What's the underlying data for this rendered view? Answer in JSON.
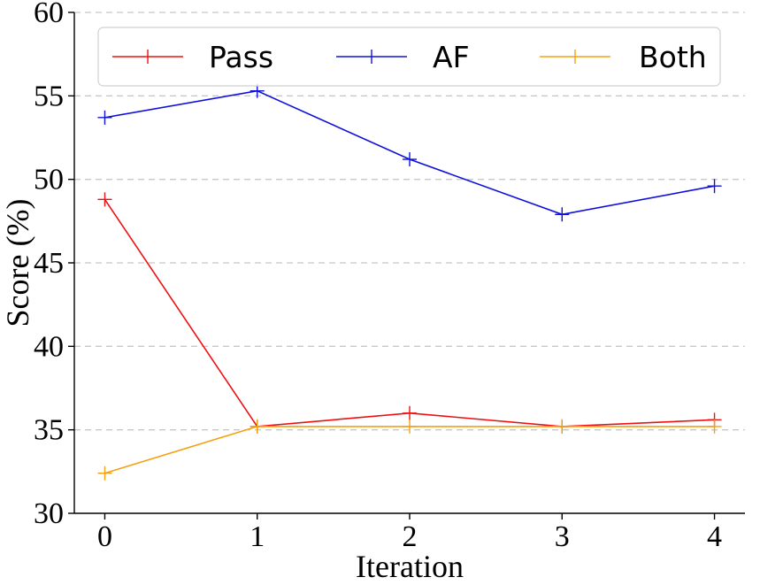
{
  "chart_data": {
    "type": "line",
    "title": "",
    "xlabel": "Iteration",
    "ylabel": "Score (%)",
    "x": [
      0,
      1,
      2,
      3,
      4
    ],
    "xlim": [
      -0.2,
      4.2
    ],
    "ylim": [
      30,
      60
    ],
    "yticks": [
      30,
      35,
      40,
      45,
      50,
      55,
      60
    ],
    "xticks": [
      0,
      1,
      2,
      3,
      4
    ],
    "grid": "horizontal-dashed",
    "legend_position": "top",
    "series": [
      {
        "name": "Pass",
        "color": "#ee1111",
        "values": [
          48.8,
          35.2,
          36.0,
          35.2,
          35.6
        ]
      },
      {
        "name": "AF",
        "color": "#1010dd",
        "values": [
          53.7,
          55.3,
          51.2,
          47.9,
          49.6
        ]
      },
      {
        "name": "Both",
        "color": "#f5a010",
        "values": [
          32.4,
          35.2,
          35.2,
          35.2,
          35.2
        ]
      }
    ]
  }
}
